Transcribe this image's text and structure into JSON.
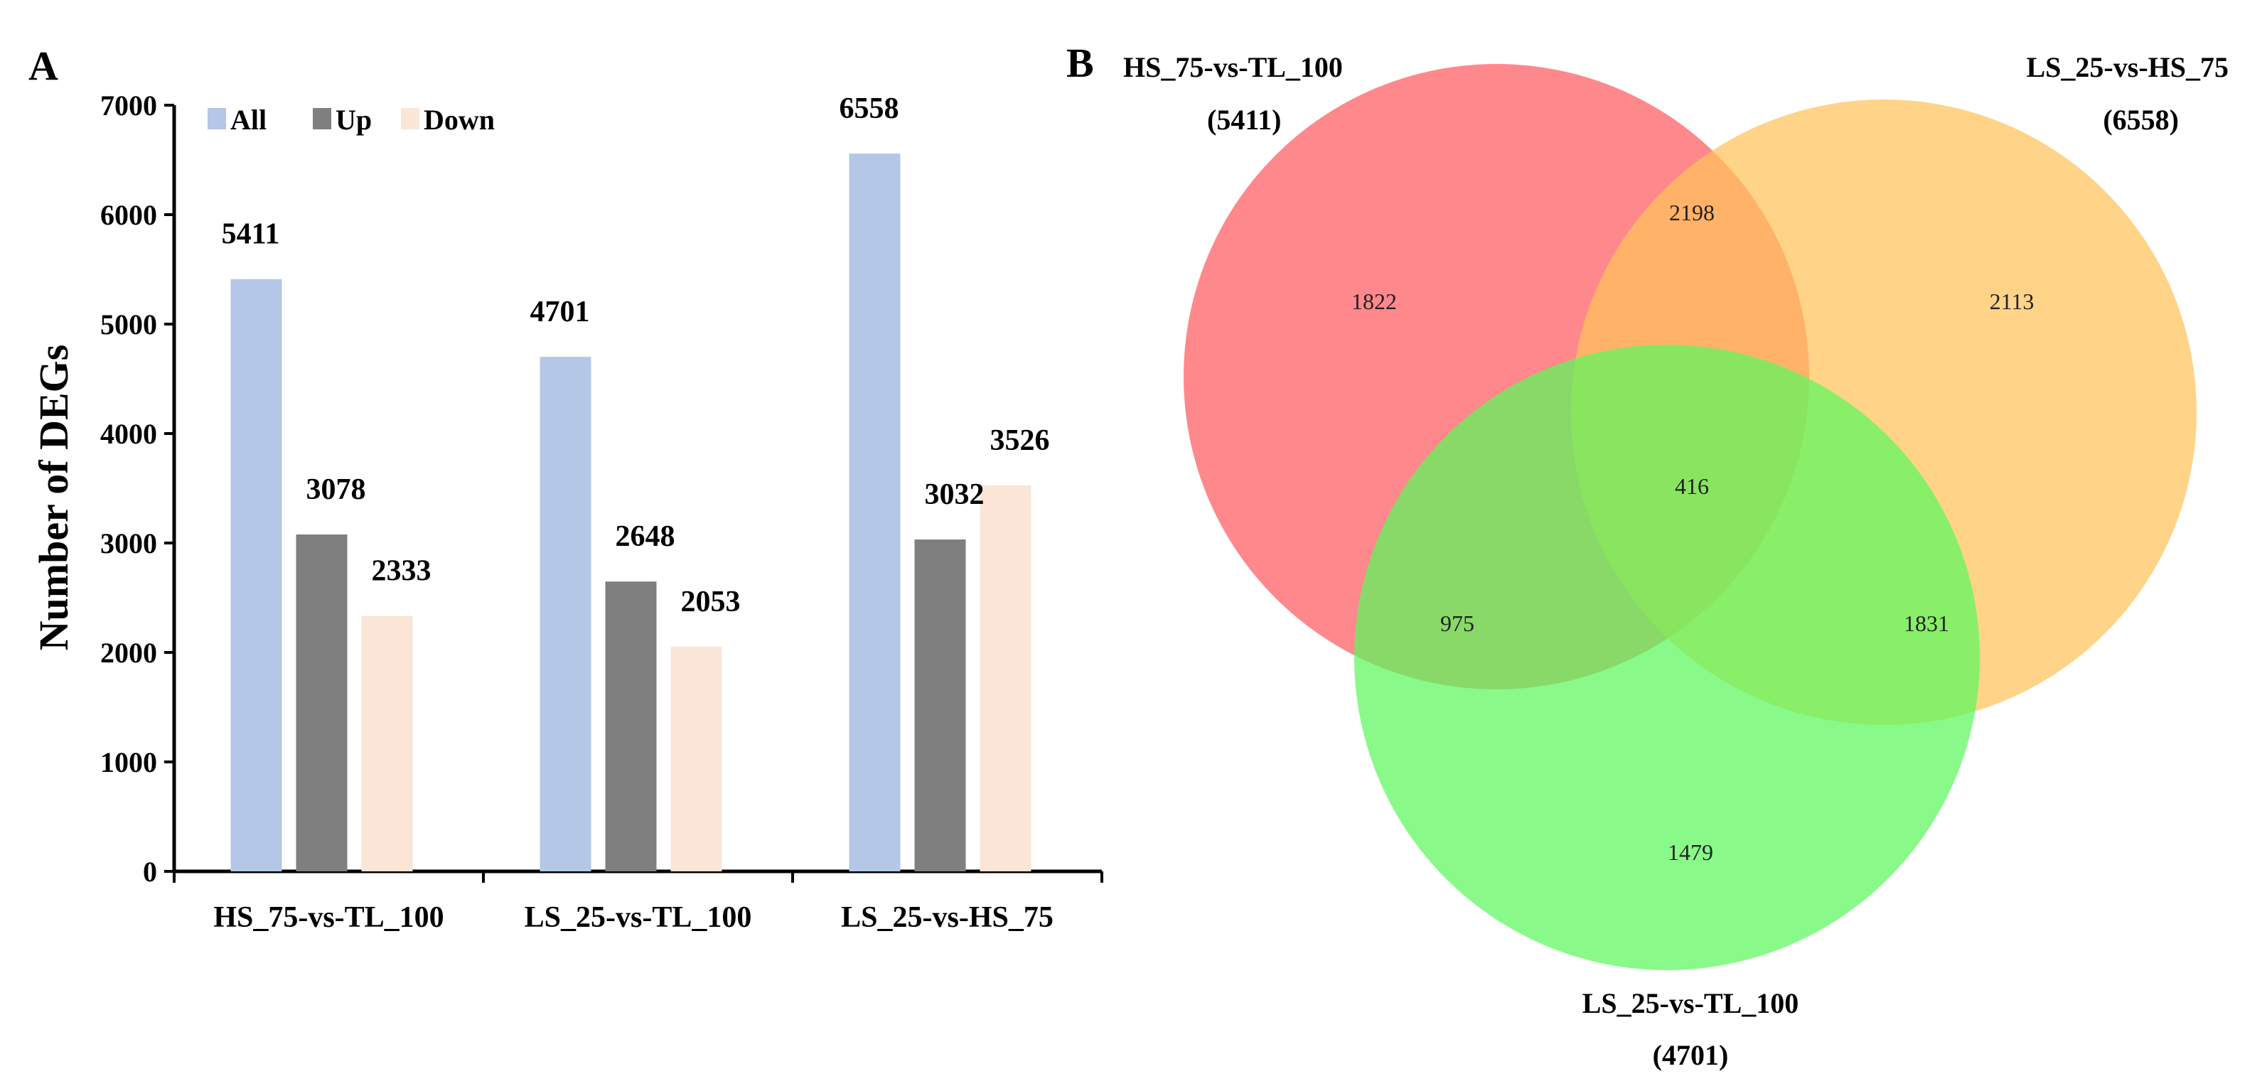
{
  "panels": {
    "a_label": "A",
    "b_label": "B"
  },
  "chart_data": [
    {
      "type": "bar",
      "title": "",
      "xlabel": "",
      "ylabel": "Number of DEGs",
      "ylim": [
        0,
        7000
      ],
      "yticks": [
        0,
        1000,
        2000,
        3000,
        4000,
        5000,
        6000,
        7000
      ],
      "categories": [
        "HS_75-vs-TL_100",
        "LS_25-vs-TL_100",
        "LS_25-vs-HS_75"
      ],
      "legend_position": "top-left",
      "grid": false,
      "series": [
        {
          "name": "All",
          "color": "#b4c7e7",
          "values": [
            5411,
            4701,
            6558
          ]
        },
        {
          "name": "Up",
          "color": "#7f7f7f",
          "values": [
            3078,
            2648,
            3032
          ]
        },
        {
          "name": "Down",
          "color": "#fbe5d6",
          "values": [
            2333,
            2053,
            3526
          ]
        }
      ]
    },
    {
      "type": "venn",
      "sets": [
        {
          "name": "HS_75-vs-TL_100",
          "total": "(5411)",
          "color": "#ff5a5f"
        },
        {
          "name": "LS_25-vs-HS_75",
          "total": "(6558)",
          "color": "#ffc25a"
        },
        {
          "name": "LS_25-vs-TL_100",
          "total": "(4701)",
          "color": "#5cf85c"
        }
      ],
      "regions": {
        "only_hs75_tl100": "1822",
        "only_ls25_hs75": "2113",
        "only_ls25_tl100": "1479",
        "hs75_tl100_and_ls25_hs75": "2198",
        "hs75_tl100_and_ls25_tl100": "975",
        "ls25_hs75_and_ls25_tl100": "1831",
        "all_three": "416"
      }
    }
  ]
}
